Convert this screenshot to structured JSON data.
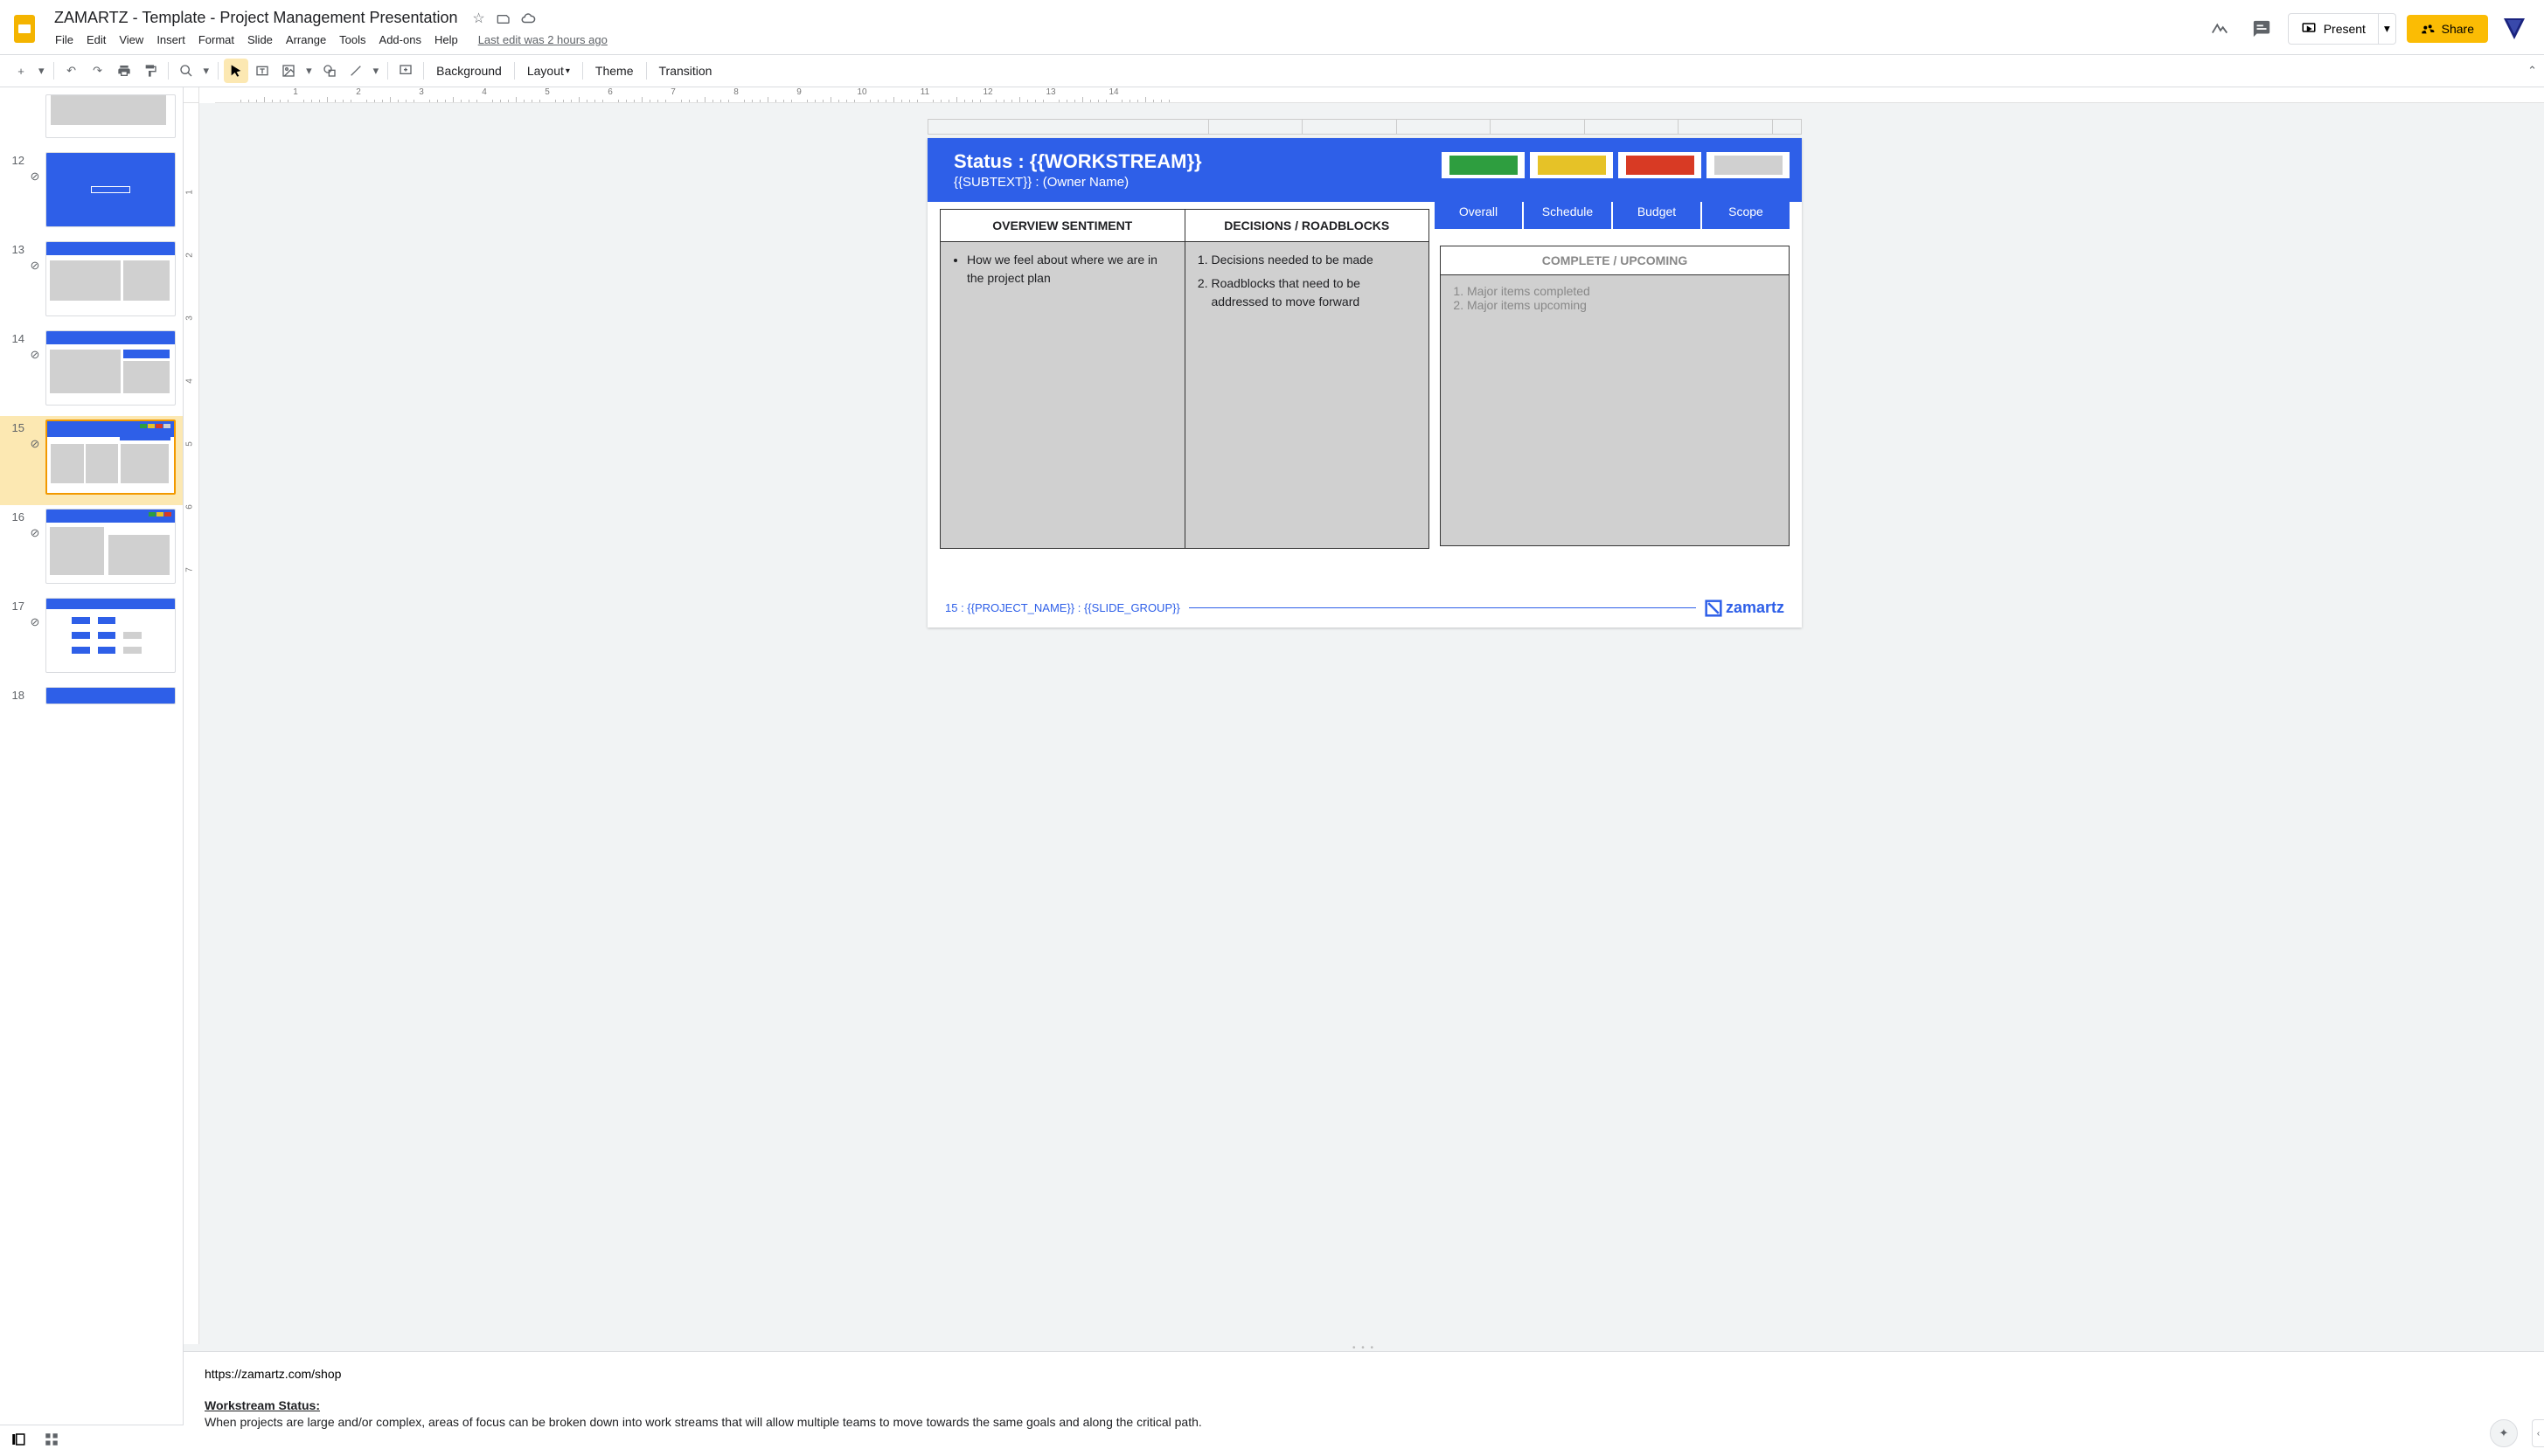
{
  "doc": {
    "title": "ZAMARTZ - Template - Project Management Presentation",
    "last_edit": "Last edit was 2 hours ago"
  },
  "menu": [
    "File",
    "Edit",
    "View",
    "Insert",
    "Format",
    "Slide",
    "Arrange",
    "Tools",
    "Add-ons",
    "Help"
  ],
  "toolbar": {
    "background": "Background",
    "layout": "Layout",
    "theme": "Theme",
    "transition": "Transition"
  },
  "actions": {
    "present": "Present",
    "share": "Share"
  },
  "ruler_h": [
    ".",
    "1",
    ".",
    "2",
    ".",
    "3",
    ".",
    "4",
    ".",
    "5",
    ".",
    "6",
    ".",
    "7",
    ".",
    "8",
    ".",
    "9",
    ".",
    "10",
    ".",
    "11",
    ".",
    "12",
    ".",
    "13"
  ],
  "ruler_v": [
    "1",
    "2",
    "3",
    "4",
    "5",
    "6",
    "7"
  ],
  "thumbs": [
    {
      "num": "",
      "partial": true
    },
    {
      "num": "12"
    },
    {
      "num": "13"
    },
    {
      "num": "14"
    },
    {
      "num": "15",
      "selected": true
    },
    {
      "num": "16"
    },
    {
      "num": "17"
    },
    {
      "num": "18",
      "partial": true
    }
  ],
  "slide": {
    "title": "Status : {{WORKSTREAM}}",
    "subtitle": "{{SUBTEXT}} : (Owner Name)",
    "status_colors": [
      "#2e9e3f",
      "#e6c227",
      "#d83a24",
      "#d0d0d0"
    ],
    "status_labels": [
      "Overall",
      "Schedule",
      "Budget",
      "Scope"
    ],
    "col1_head": "OVERVIEW SENTIMENT",
    "col2_head": "DECISIONS / ROADBLOCKS",
    "col1_item": "How we feel about where we are in the project plan",
    "col2_item1": "Decisions needed to be made",
    "col2_item2": "Roadblocks that need to be addressed to move forward",
    "right_head": "COMPLETE / UPCOMING",
    "right_item1": "Major items completed",
    "right_item2": "Major items upcoming",
    "footer_text": "15 : {{PROJECT_NAME}} : {{SLIDE_GROUP}}",
    "footer_logo": "zamartz"
  },
  "notes": {
    "url": "https://zamartz.com/shop",
    "heading": "Workstream Status:",
    "body": "When projects are large and/or complex, areas of focus can be broken down into work streams that will allow multiple teams to move towards the same goals and along the critical path."
  }
}
